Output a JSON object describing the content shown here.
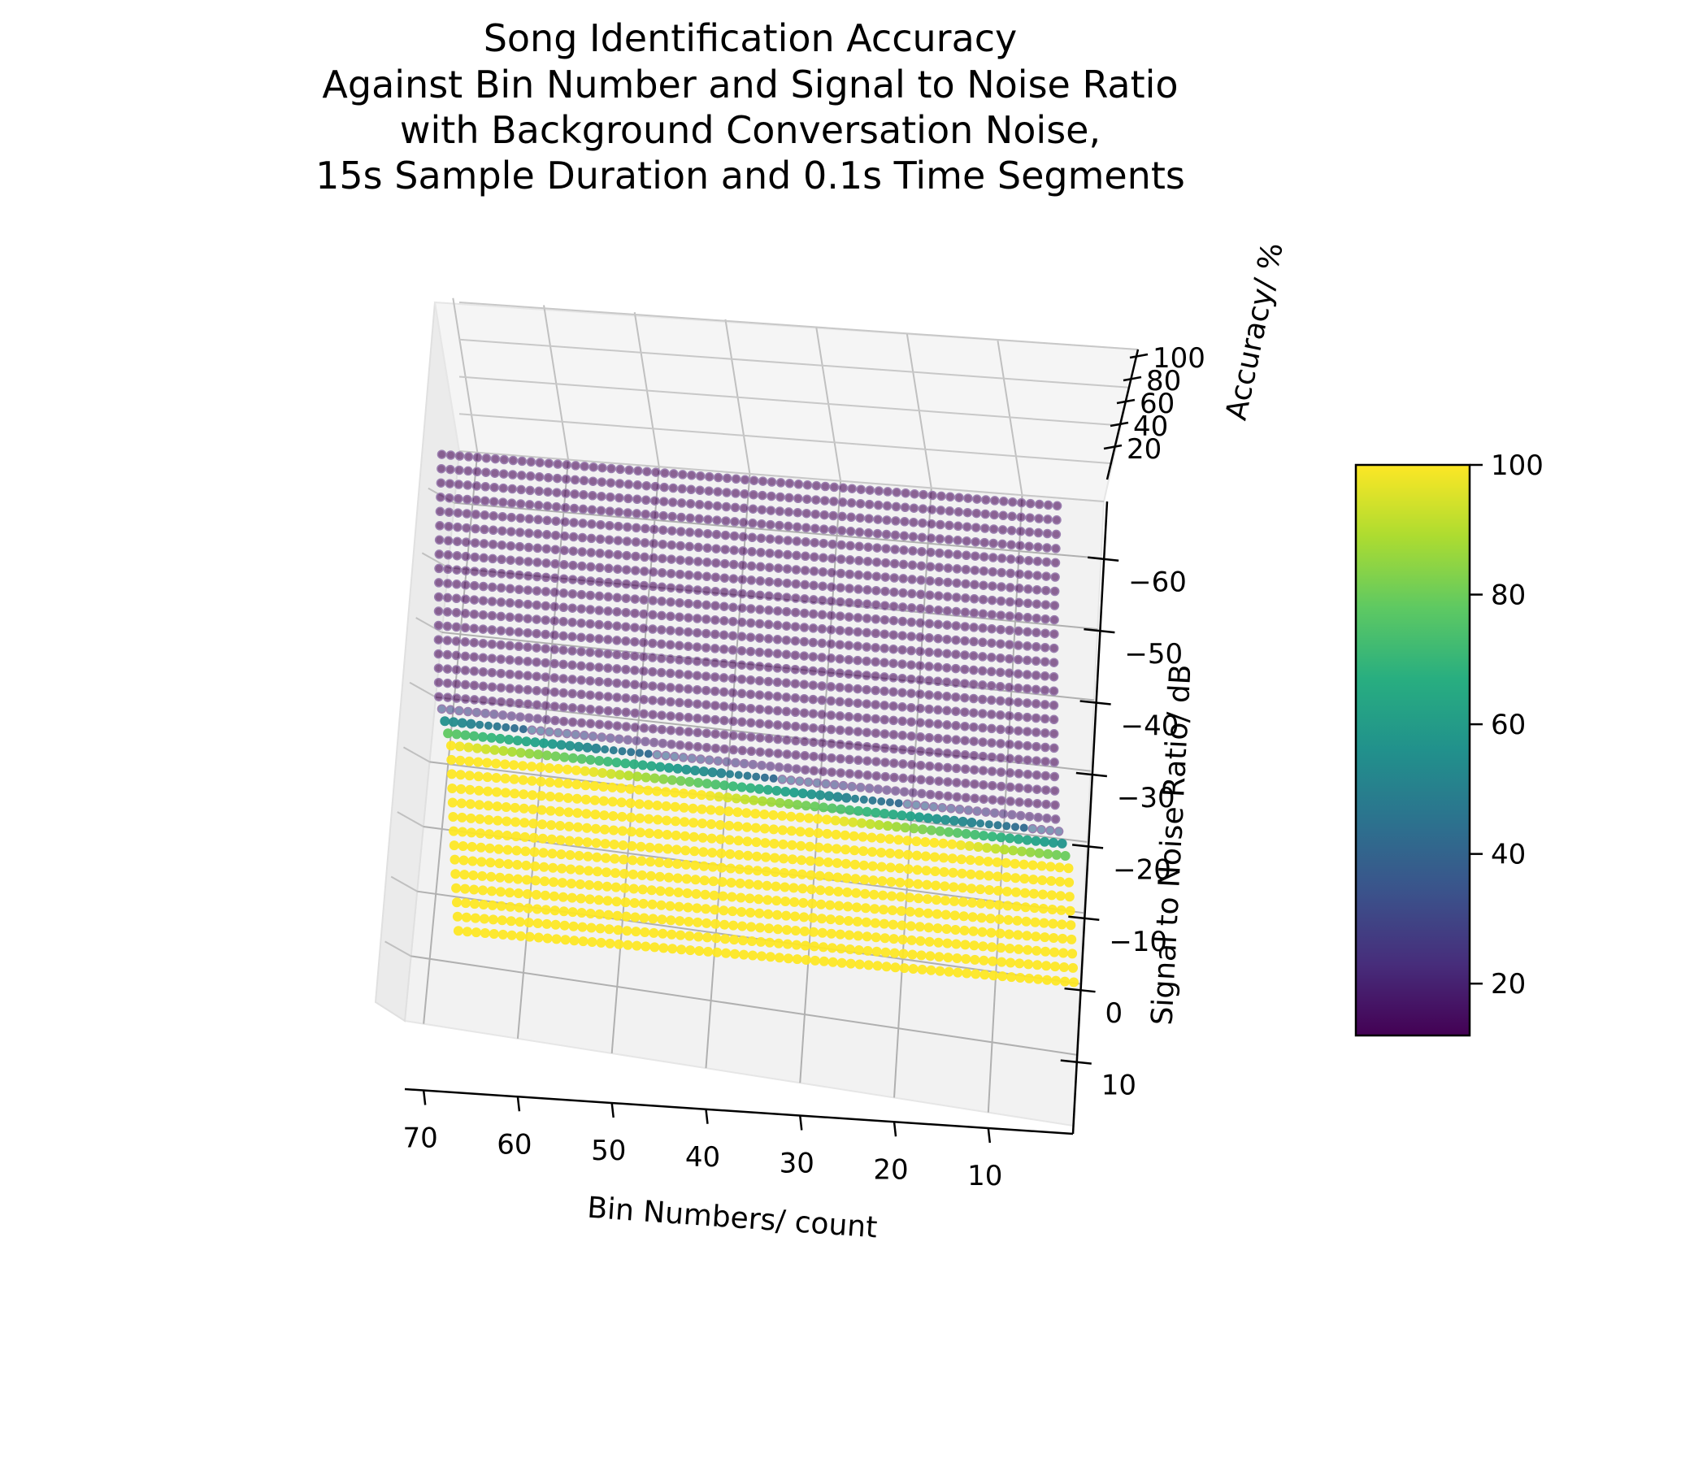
{
  "chart_data": {
    "type": "scatter",
    "projection": "3d",
    "title": [
      "Song Identification Accuracy",
      "Against Bin Number and Signal to Noise Ratio",
      "with Background Conversation Noise,",
      "15s Sample Duration and 0.1s Time Segments"
    ],
    "xlabel": "Bin Numbers/ count",
    "ylabel": "Signal to Noise Ratio/ dB",
    "zlabel": "Accuracy/ %",
    "x_ticks": [
      "70",
      "60",
      "50",
      "40",
      "30",
      "20",
      "10"
    ],
    "y_ticks": [
      "−60",
      "−50",
      "−40",
      "−30",
      "−20",
      "−10",
      "0",
      "10"
    ],
    "z_ticks": [
      "20",
      "40",
      "60",
      "80",
      "100"
    ],
    "colorbar_ticks": [
      "20",
      "40",
      "60",
      "80",
      "100"
    ],
    "colormap": "viridis",
    "x_range": [
      1,
      72
    ],
    "y_range": [
      -68,
      5
    ],
    "z_range": [
      0,
      100
    ],
    "grid": true,
    "series_pattern": {
      "x_values": [
        1,
        2,
        3,
        4,
        5,
        6,
        7,
        8,
        9,
        10,
        11,
        12,
        13,
        14,
        15,
        16,
        17,
        18,
        19,
        20,
        21,
        22,
        23,
        24,
        25,
        26,
        27,
        28,
        29,
        30,
        31,
        32,
        33,
        34,
        35,
        36,
        37,
        38,
        39,
        40,
        41,
        42,
        43,
        44,
        45,
        46,
        47,
        48,
        49,
        50,
        51,
        52,
        53,
        54,
        55,
        56,
        57,
        58,
        59,
        60,
        61,
        62,
        63,
        64,
        65,
        66,
        67,
        68,
        69,
        70
      ],
      "y_step": 2,
      "accuracy_high": 100,
      "accuracy_low": 10
    }
  }
}
